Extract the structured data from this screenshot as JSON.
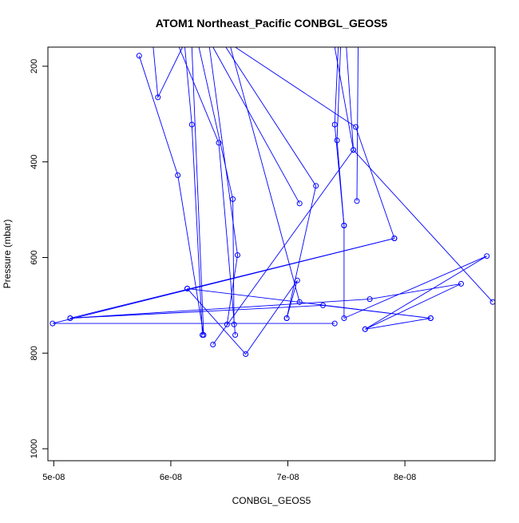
{
  "colors": {
    "series": "#0000ff",
    "axis": "#000000",
    "background": "#ffffff"
  },
  "chart_data": {
    "type": "line",
    "title": "ATOM1 Northeast_Pacific CONBGL_GEOS5",
    "xlabel": "CONBGL_GEOS5",
    "ylabel": "Pressure (mbar)",
    "xlim": [
      4.95e-08,
      8.77e-08
    ],
    "ylim": [
      1025,
      160
    ],
    "y_reversed": true,
    "markers": "open-circle",
    "grid": false,
    "legend": "none",
    "x_ticks": [
      {
        "value": 5e-08,
        "label": "5e-08"
      },
      {
        "value": 6e-08,
        "label": "6e-08"
      },
      {
        "value": 7e-08,
        "label": "7e-08"
      },
      {
        "value": 8e-08,
        "label": "8e-08"
      }
    ],
    "y_ticks": [
      {
        "value": 200,
        "label": "200"
      },
      {
        "value": 400,
        "label": "400"
      },
      {
        "value": 600,
        "label": "600"
      },
      {
        "value": 800,
        "label": "800"
      },
      {
        "value": 1000,
        "label": "1000"
      }
    ],
    "series": [
      {
        "points": [
          {
            "x": 5.73e-08,
            "y": 178,
            "marker": true
          },
          {
            "x": 6.06e-08,
            "y": 428,
            "marker": true
          },
          {
            "x": 6.28e-08,
            "y": 762,
            "marker": true
          },
          {
            "x": 6.18e-08,
            "y": 160,
            "marker": false
          },
          {
            "x": 6.1e-08,
            "y": 160,
            "marker": false
          },
          {
            "x": 5.89e-08,
            "y": 265,
            "marker": true
          },
          {
            "x": 5.85e-08,
            "y": 160,
            "marker": false
          }
        ]
      },
      {
        "points": [
          {
            "x": 6.12e-08,
            "y": 160,
            "marker": false
          },
          {
            "x": 6.18e-08,
            "y": 322,
            "marker": true
          },
          {
            "x": 6.27e-08,
            "y": 762,
            "marker": true
          }
        ]
      },
      {
        "points": [
          {
            "x": 6.07e-08,
            "y": 160,
            "marker": false
          },
          {
            "x": 6.41e-08,
            "y": 360,
            "marker": true
          },
          {
            "x": 6.55e-08,
            "y": 762,
            "marker": true
          }
        ]
      },
      {
        "points": [
          {
            "x": 6.24e-08,
            "y": 160,
            "marker": false
          },
          {
            "x": 6.53e-08,
            "y": 478,
            "marker": true
          },
          {
            "x": 6.54e-08,
            "y": 740,
            "marker": true
          }
        ]
      },
      {
        "points": [
          {
            "x": 6.33e-08,
            "y": 160,
            "marker": false
          },
          {
            "x": 6.57e-08,
            "y": 595,
            "marker": true
          },
          {
            "x": 6.48e-08,
            "y": 740,
            "marker": true
          }
        ]
      },
      {
        "points": [
          {
            "x": 6.36e-08,
            "y": 160,
            "marker": false
          },
          {
            "x": 7.1e-08,
            "y": 487,
            "marker": true
          }
        ]
      },
      {
        "points": [
          {
            "x": 6.47e-08,
            "y": 160,
            "marker": false
          },
          {
            "x": 7.24e-08,
            "y": 450,
            "marker": true
          },
          {
            "x": 6.99e-08,
            "y": 727,
            "marker": true
          }
        ]
      },
      {
        "points": [
          {
            "x": 6.51e-08,
            "y": 160,
            "marker": false
          },
          {
            "x": 7.1e-08,
            "y": 693,
            "marker": true
          }
        ]
      },
      {
        "points": [
          {
            "x": 6.55e-08,
            "y": 160,
            "marker": false
          },
          {
            "x": 7.58e-08,
            "y": 327,
            "marker": true
          },
          {
            "x": 7.91e-08,
            "y": 560,
            "marker": true
          },
          {
            "x": 4.99e-08,
            "y": 738,
            "marker": true
          },
          {
            "x": 7.4e-08,
            "y": 738,
            "marker": true
          }
        ]
      },
      {
        "points": [
          {
            "x": 7.43e-08,
            "y": 160,
            "marker": false
          },
          {
            "x": 7.4e-08,
            "y": 322,
            "marker": true
          },
          {
            "x": 7.48e-08,
            "y": 533,
            "marker": true
          },
          {
            "x": 7.48e-08,
            "y": 727,
            "marker": true
          },
          {
            "x": 8.7e-08,
            "y": 597,
            "marker": true
          },
          {
            "x": 7.66e-08,
            "y": 750,
            "marker": true
          },
          {
            "x": 8.48e-08,
            "y": 655,
            "marker": true
          },
          {
            "x": 7.7e-08,
            "y": 687,
            "marker": true
          },
          {
            "x": 5.14e-08,
            "y": 727,
            "marker": true
          }
        ]
      },
      {
        "points": [
          {
            "x": 7.6e-08,
            "y": 160,
            "marker": false
          },
          {
            "x": 7.59e-08,
            "y": 482,
            "marker": true
          }
        ]
      },
      {
        "points": [
          {
            "x": 7.45e-08,
            "y": 160,
            "marker": false
          },
          {
            "x": 7.42e-08,
            "y": 355,
            "marker": true
          },
          {
            "x": 7.48e-08,
            "y": 533,
            "marker": true
          }
        ]
      },
      {
        "points": [
          {
            "x": 7.5e-08,
            "y": 160,
            "marker": false
          },
          {
            "x": 7.56e-08,
            "y": 375,
            "marker": true
          },
          {
            "x": 6.36e-08,
            "y": 782,
            "marker": true
          }
        ]
      },
      {
        "points": [
          {
            "x": 7.4e-08,
            "y": 160,
            "marker": false
          },
          {
            "x": 7.56e-08,
            "y": 375,
            "marker": true
          },
          {
            "x": 8.75e-08,
            "y": 693,
            "marker": true
          }
        ]
      },
      {
        "points": [
          {
            "x": 6.14e-08,
            "y": 665,
            "marker": true
          },
          {
            "x": 8.22e-08,
            "y": 727,
            "marker": true
          },
          {
            "x": 7.3e-08,
            "y": 700,
            "marker": true
          },
          {
            "x": 5.14e-08,
            "y": 727,
            "marker": true
          },
          {
            "x": 7.91e-08,
            "y": 560,
            "marker": true
          }
        ]
      },
      {
        "points": [
          {
            "x": 6.14e-08,
            "y": 665,
            "marker": true
          },
          {
            "x": 6.64e-08,
            "y": 802,
            "marker": true
          },
          {
            "x": 7.08e-08,
            "y": 648,
            "marker": true
          },
          {
            "x": 6.99e-08,
            "y": 727,
            "marker": true
          }
        ]
      },
      {
        "points": [
          {
            "x": 7.66e-08,
            "y": 750,
            "marker": true
          },
          {
            "x": 8.22e-08,
            "y": 727,
            "marker": true
          }
        ]
      }
    ]
  }
}
